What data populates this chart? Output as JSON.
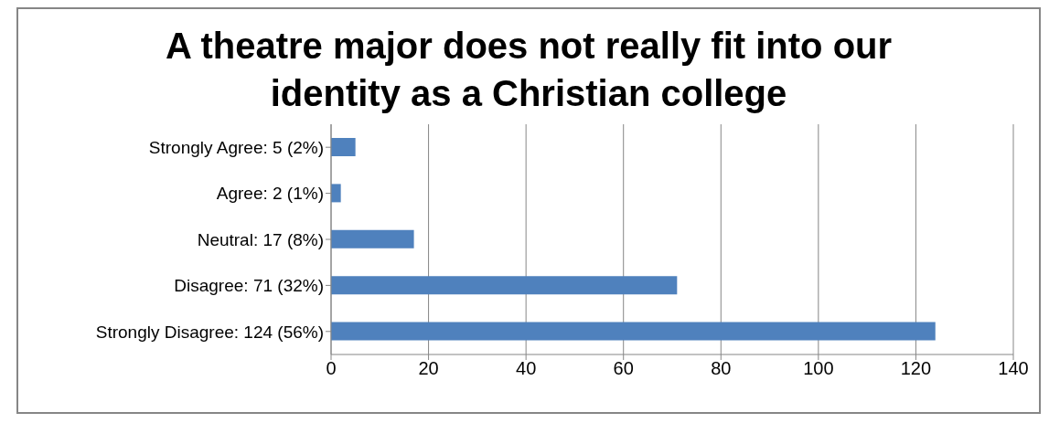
{
  "chart_data": {
    "type": "bar",
    "orientation": "horizontal",
    "title": "A theatre major does not really fit into our identity as a  Christian college",
    "categories": [
      "Strongly Agree: 5 (2%)",
      "Agree: 2 (1%)",
      "Neutral: 17 (8%)",
      "Disagree: 71 (32%)",
      "Strongly Disagree: 124 (56%)"
    ],
    "values": [
      5,
      2,
      17,
      71,
      124
    ],
    "color": "#4f81bd",
    "xlim": [
      0,
      140
    ],
    "xticks": [
      0,
      20,
      40,
      60,
      80,
      100,
      120,
      140
    ],
    "grid": "x",
    "legend": false
  }
}
